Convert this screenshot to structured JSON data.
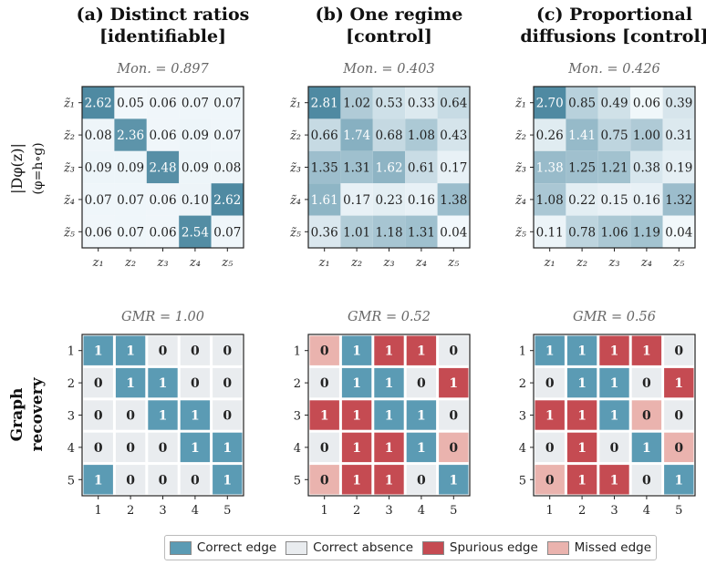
{
  "figure": {
    "row_label_top": "|Dφ(z)|",
    "row_label_top_sub": "(φ=h∘g)",
    "row_label_bottom_line1": "Graph",
    "row_label_bottom_line2": "recovery"
  },
  "legend": {
    "items": [
      {
        "label": "Correct edge",
        "color": "#5b9bb4"
      },
      {
        "label": "Correct absence",
        "color": "#e9ecef"
      },
      {
        "label": "Spurious edge",
        "color": "#c54b52"
      },
      {
        "label": "Missed edge",
        "color": "#eab3ae"
      }
    ]
  },
  "colors": {
    "heat_low": "#f7fbfe",
    "heat_high": "#4f8aa2",
    "correct_edge": "#5b9bb4",
    "correct_absence": "#e9ecef",
    "spurious_edge": "#c54b52",
    "missed_edge": "#eab3ae"
  },
  "chart_data": [
    {
      "type": "heatmap",
      "title_line1": "(a) Distinct ratios",
      "title_line2": "[identifiable]",
      "subtitle": "Mon. = 0.897",
      "xticks": [
        "z₁",
        "z₂",
        "z₃",
        "z₄",
        "z₅"
      ],
      "yticks": [
        "z̃₁",
        "z̃₂",
        "z̃₃",
        "z̃₄",
        "z̃₅"
      ],
      "values": [
        [
          2.62,
          0.05,
          0.06,
          0.07,
          0.07
        ],
        [
          0.08,
          2.36,
          0.06,
          0.09,
          0.07
        ],
        [
          0.09,
          0.09,
          2.48,
          0.09,
          0.08
        ],
        [
          0.07,
          0.07,
          0.06,
          0.1,
          2.62
        ],
        [
          0.06,
          0.07,
          0.06,
          2.54,
          0.07
        ]
      ]
    },
    {
      "type": "heatmap",
      "title_line1": "(b) One regime",
      "title_line2": "[control]",
      "subtitle": "Mon. = 0.403",
      "xticks": [
        "z₁",
        "z₂",
        "z₃",
        "z₄",
        "z₅"
      ],
      "yticks": [
        "z̃₁",
        "z̃₂",
        "z̃₃",
        "z̃₄",
        "z̃₅"
      ],
      "values": [
        [
          2.81,
          1.02,
          0.53,
          0.33,
          0.64
        ],
        [
          0.66,
          1.74,
          0.68,
          1.08,
          0.43
        ],
        [
          1.35,
          1.31,
          1.62,
          0.61,
          0.17
        ],
        [
          1.61,
          0.17,
          0.23,
          0.16,
          1.38
        ],
        [
          0.36,
          1.01,
          1.18,
          1.31,
          0.04
        ]
      ]
    },
    {
      "type": "heatmap",
      "title_line1": "(c) Proportional",
      "title_line2": "diffusions [control]",
      "subtitle": "Mon. = 0.426",
      "xticks": [
        "z₁",
        "z₂",
        "z₃",
        "z₄",
        "z₅"
      ],
      "yticks": [
        "z̃₁",
        "z̃₂",
        "z̃₃",
        "z̃₄",
        "z̃₅"
      ],
      "values": [
        [
          2.7,
          0.85,
          0.49,
          0.06,
          0.39
        ],
        [
          0.26,
          1.41,
          0.75,
          1.0,
          0.31
        ],
        [
          1.38,
          1.25,
          1.21,
          0.38,
          0.19
        ],
        [
          1.08,
          0.22,
          0.15,
          0.16,
          1.32
        ],
        [
          0.11,
          0.78,
          1.06,
          1.19,
          0.04
        ]
      ]
    },
    {
      "type": "table",
      "subtitle": "GMR = 1.00",
      "xticks": [
        "1",
        "2",
        "3",
        "4",
        "5"
      ],
      "yticks": [
        "1",
        "2",
        "3",
        "4",
        "5"
      ],
      "values": [
        [
          1,
          1,
          0,
          0,
          0
        ],
        [
          0,
          1,
          1,
          0,
          0
        ],
        [
          0,
          0,
          1,
          1,
          0
        ],
        [
          0,
          0,
          0,
          1,
          1
        ],
        [
          1,
          0,
          0,
          0,
          1
        ]
      ],
      "status": [
        [
          "correct_edge",
          "correct_edge",
          "correct_absence",
          "correct_absence",
          "correct_absence"
        ],
        [
          "correct_absence",
          "correct_edge",
          "correct_edge",
          "correct_absence",
          "correct_absence"
        ],
        [
          "correct_absence",
          "correct_absence",
          "correct_edge",
          "correct_edge",
          "correct_absence"
        ],
        [
          "correct_absence",
          "correct_absence",
          "correct_absence",
          "correct_edge",
          "correct_edge"
        ],
        [
          "correct_edge",
          "correct_absence",
          "correct_absence",
          "correct_absence",
          "correct_edge"
        ]
      ]
    },
    {
      "type": "table",
      "subtitle": "GMR = 0.52",
      "xticks": [
        "1",
        "2",
        "3",
        "4",
        "5"
      ],
      "yticks": [
        "1",
        "2",
        "3",
        "4",
        "5"
      ],
      "values": [
        [
          0,
          1,
          1,
          1,
          0
        ],
        [
          0,
          1,
          1,
          0,
          1
        ],
        [
          1,
          1,
          1,
          1,
          0
        ],
        [
          0,
          1,
          1,
          1,
          0
        ],
        [
          0,
          1,
          1,
          0,
          1
        ]
      ],
      "status": [
        [
          "missed_edge",
          "correct_edge",
          "spurious_edge",
          "spurious_edge",
          "correct_absence"
        ],
        [
          "correct_absence",
          "correct_edge",
          "correct_edge",
          "correct_absence",
          "spurious_edge"
        ],
        [
          "spurious_edge",
          "spurious_edge",
          "correct_edge",
          "correct_edge",
          "correct_absence"
        ],
        [
          "correct_absence",
          "spurious_edge",
          "spurious_edge",
          "correct_edge",
          "missed_edge"
        ],
        [
          "missed_edge",
          "spurious_edge",
          "spurious_edge",
          "correct_absence",
          "correct_edge"
        ]
      ]
    },
    {
      "type": "table",
      "subtitle": "GMR = 0.56",
      "xticks": [
        "1",
        "2",
        "3",
        "4",
        "5"
      ],
      "yticks": [
        "1",
        "2",
        "3",
        "4",
        "5"
      ],
      "values": [
        [
          1,
          1,
          1,
          1,
          0
        ],
        [
          0,
          1,
          1,
          0,
          1
        ],
        [
          1,
          1,
          1,
          0,
          0
        ],
        [
          0,
          1,
          0,
          1,
          0
        ],
        [
          0,
          1,
          1,
          0,
          1
        ]
      ],
      "status": [
        [
          "correct_edge",
          "correct_edge",
          "spurious_edge",
          "spurious_edge",
          "correct_absence"
        ],
        [
          "correct_absence",
          "correct_edge",
          "correct_edge",
          "correct_absence",
          "spurious_edge"
        ],
        [
          "spurious_edge",
          "spurious_edge",
          "correct_edge",
          "missed_edge",
          "correct_absence"
        ],
        [
          "correct_absence",
          "spurious_edge",
          "correct_absence",
          "correct_edge",
          "missed_edge"
        ],
        [
          "missed_edge",
          "spurious_edge",
          "spurious_edge",
          "correct_absence",
          "correct_edge"
        ]
      ]
    }
  ]
}
